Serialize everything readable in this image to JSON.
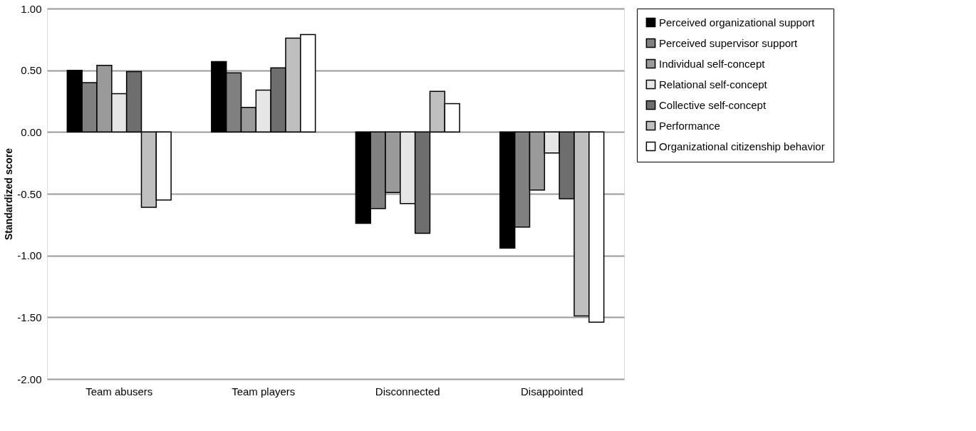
{
  "chart_data": {
    "type": "bar",
    "ylabel": "Standardized score",
    "categories": [
      "Team abusers",
      "Team players",
      "Disconnected",
      "Disappointed"
    ],
    "series": [
      {
        "name": "Perceived organizational support",
        "color": "#000000",
        "values": [
          0.5,
          0.57,
          -0.74,
          -0.94
        ]
      },
      {
        "name": "Perceived supervisor support",
        "color": "#808080",
        "values": [
          0.4,
          0.48,
          -0.62,
          -0.77
        ]
      },
      {
        "name": "Individual self-concept",
        "color": "#9a9a9a",
        "values": [
          0.54,
          0.2,
          -0.49,
          -0.47
        ]
      },
      {
        "name": "Relational self-concept",
        "color": "#e6e6e6",
        "values": [
          0.31,
          0.34,
          -0.58,
          -0.17
        ]
      },
      {
        "name": "Collective self-concept",
        "color": "#6e6e6e",
        "values": [
          0.49,
          0.52,
          -0.82,
          -0.54
        ]
      },
      {
        "name": "Performance",
        "color": "#bfbfbf",
        "values": [
          -0.61,
          0.76,
          0.33,
          -1.49
        ]
      },
      {
        "name": "Organizational citizenship behavior",
        "color": "#ffffff",
        "values": [
          -0.55,
          0.79,
          0.23,
          -1.54
        ]
      }
    ],
    "ylim": [
      -2,
      1
    ],
    "yticks": [
      {
        "value": -2,
        "label": "-2.00"
      },
      {
        "value": -1.5,
        "label": "-1.50"
      },
      {
        "value": -1,
        "label": "-1.00"
      },
      {
        "value": -0.5,
        "label": "-0.50"
      },
      {
        "value": 0,
        "label": "0.00"
      },
      {
        "value": 0.5,
        "label": "0.50"
      },
      {
        "value": 1,
        "label": "1.00"
      }
    ],
    "grid": "y",
    "legend": "right"
  }
}
